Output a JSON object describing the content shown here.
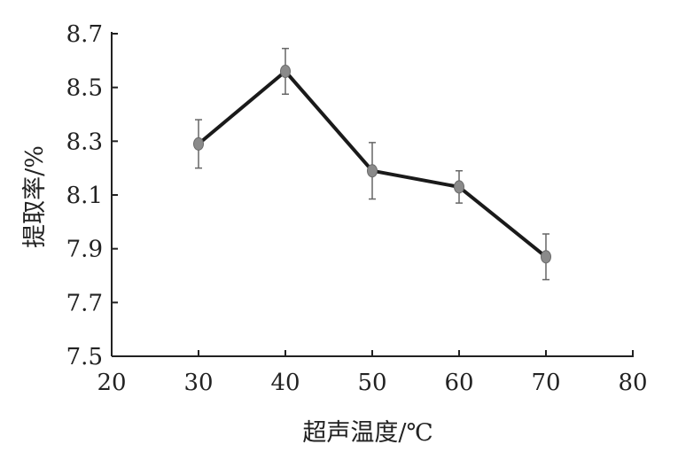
{
  "chart_data": {
    "type": "line",
    "title": "",
    "xlabel": "超声温度/℃",
    "ylabel": "提取率/%",
    "xlim": [
      20,
      80
    ],
    "ylim": [
      7.5,
      8.7
    ],
    "x_ticks": [
      "20",
      "30",
      "40",
      "50",
      "60",
      "70",
      "80"
    ],
    "y_ticks": [
      "7.5",
      "7.7",
      "7.9",
      "8.1",
      "8.3",
      "8.5",
      "8.7"
    ],
    "grid": false,
    "series": [
      {
        "x": [
          30,
          40,
          50,
          60,
          70
        ],
        "y": [
          8.29,
          8.56,
          8.19,
          8.13,
          7.87
        ],
        "error": [
          0.09,
          0.085,
          0.105,
          0.06,
          0.085
        ]
      }
    ]
  }
}
